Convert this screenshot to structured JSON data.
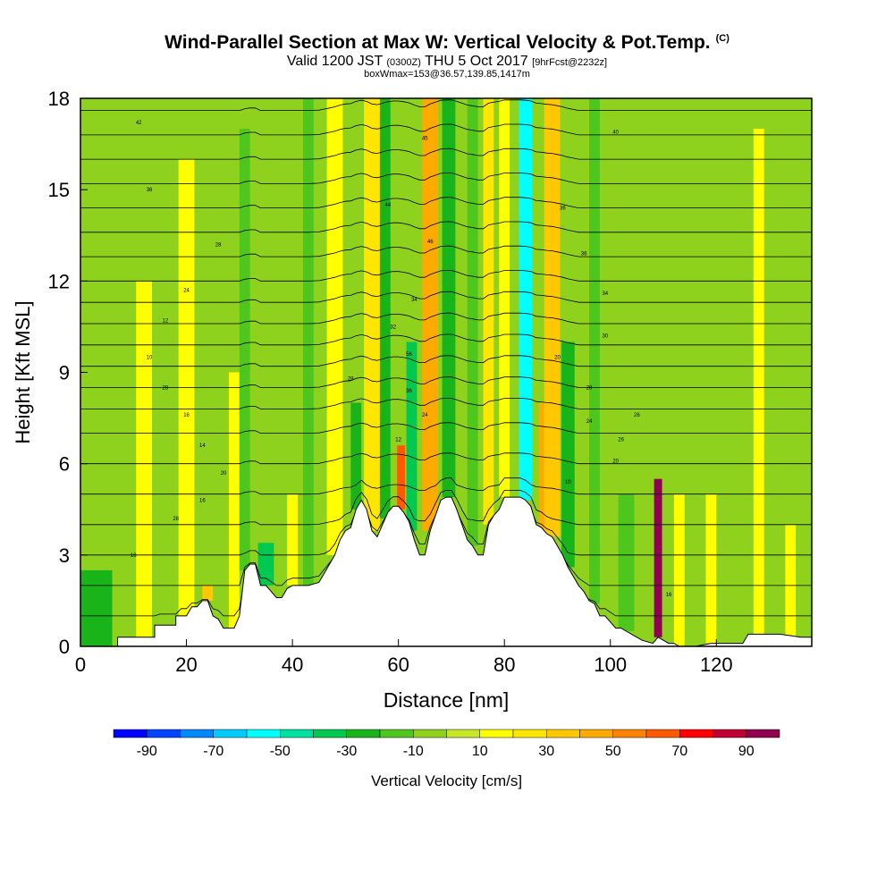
{
  "chart_data": {
    "type": "heatmap",
    "title": "Wind-Parallel Section at Max W: Vertical Velocity & Pot.Temp.",
    "title_mark": "(C)",
    "subtitle_parts": [
      "Valid 1200 JST",
      "(0300Z)",
      "THU 5 Oct 2017",
      "[9hrFcst@2232z]"
    ],
    "subsubtitle": "boxWmax=153@36.57,139.85,1417m",
    "xlabel": "Distance [nm]",
    "ylabel": "Height [Kft MSL]",
    "xlim": [
      0,
      138
    ],
    "ylim": [
      0,
      18
    ],
    "x_ticks": [
      "0",
      "20",
      "40",
      "60",
      "80",
      "100",
      "120"
    ],
    "x_tick_values": [
      0,
      20,
      40,
      60,
      80,
      100,
      120
    ],
    "y_ticks": [
      "0",
      "3",
      "6",
      "9",
      "12",
      "15",
      "18"
    ],
    "y_tick_values": [
      0,
      3,
      6,
      9,
      12,
      15,
      18
    ],
    "colorbar": {
      "label": "Vertical Velocity [cm/s]",
      "tick_labels": [
        "-90",
        "-70",
        "-50",
        "-30",
        "-10",
        "10",
        "30",
        "50",
        "70",
        "90"
      ],
      "tick_values": [
        -90,
        -70,
        -50,
        -30,
        -10,
        10,
        30,
        50,
        70,
        90
      ],
      "bounds": [
        -100,
        -90,
        -80,
        -70,
        -60,
        -50,
        -40,
        -30,
        -20,
        -10,
        0,
        10,
        20,
        30,
        40,
        50,
        60,
        70,
        80,
        90,
        100
      ],
      "colors": [
        "#0000ff",
        "#0044ff",
        "#0088ff",
        "#00ccff",
        "#00ffff",
        "#00e0a0",
        "#00c850",
        "#19b419",
        "#4ec61e",
        "#8ed21e",
        "#c6e628",
        "#ffff00",
        "#ffe600",
        "#ffc800",
        "#ffaa00",
        "#ff8200",
        "#ff5a00",
        "#ff0000",
        "#c00030",
        "#900050",
        "#600070"
      ]
    },
    "terrain_profile": {
      "x": [
        0,
        7,
        7,
        14,
        14,
        18,
        18,
        20,
        21,
        22,
        23,
        24,
        25,
        26,
        27,
        29,
        30,
        31,
        32,
        33,
        34,
        35,
        36,
        37,
        38,
        39,
        40,
        41,
        43,
        45,
        46,
        47,
        48,
        49,
        50,
        51,
        52,
        53,
        54,
        55,
        56,
        57,
        58,
        59,
        60,
        61,
        62,
        63,
        64,
        65,
        66,
        67,
        68,
        69,
        70,
        71,
        72,
        73,
        74,
        75,
        76,
        77,
        78,
        79,
        80,
        81,
        82,
        83,
        84,
        85,
        86,
        87,
        88,
        89,
        90,
        91,
        92,
        93,
        94,
        95,
        96,
        97,
        98,
        99,
        100,
        101,
        102,
        103,
        104,
        105,
        106,
        108,
        109,
        110,
        111,
        112,
        113,
        114,
        116,
        119,
        122,
        125,
        126,
        128,
        132,
        136,
        138
      ],
      "z": [
        0,
        0,
        0.3,
        0.3,
        0.7,
        0.7,
        1.0,
        1.0,
        1.3,
        1.3,
        1.5,
        1.5,
        1.0,
        0.9,
        0.6,
        0.6,
        1.0,
        2.5,
        2.7,
        2.7,
        2.0,
        2.0,
        1.8,
        1.6,
        1.6,
        1.9,
        2.0,
        2.0,
        2.0,
        2.1,
        2.4,
        2.7,
        3.0,
        3.5,
        3.8,
        3.9,
        4.5,
        4.8,
        4.5,
        3.8,
        3.6,
        4.0,
        4.4,
        4.6,
        4.6,
        4.4,
        4.1,
        3.5,
        3.0,
        3.0,
        3.8,
        4.3,
        4.8,
        4.9,
        4.9,
        4.5,
        4.0,
        3.5,
        3.3,
        3.0,
        3.0,
        4.0,
        4.3,
        4.5,
        4.9,
        4.9,
        4.9,
        4.9,
        4.8,
        4.6,
        4.0,
        3.9,
        3.7,
        3.6,
        3.3,
        3.0,
        2.6,
        2.3,
        2.0,
        1.8,
        1.5,
        1.4,
        1.0,
        1.0,
        0.8,
        0.6,
        0.6,
        0.5,
        0.4,
        0.3,
        0.2,
        0.1,
        0.3,
        0.2,
        0.1,
        0.1,
        0,
        0,
        0,
        0.1,
        0.1,
        0.1,
        0.4,
        0.4,
        0.4,
        0.3,
        0.3
      ]
    },
    "w_columns": [
      {
        "x": 3,
        "width": 6,
        "ztop": 2.5,
        "value": -25
      },
      {
        "x": 12,
        "width": 3,
        "ztop": 12.0,
        "value": 10
      },
      {
        "x": 20,
        "width": 3,
        "ztop": 16.0,
        "value": 15
      },
      {
        "x": 24,
        "width": 2,
        "ztop": 2.0,
        "value": 35
      },
      {
        "x": 29,
        "width": 2,
        "ztop": 9.0,
        "value": 15
      },
      {
        "x": 31,
        "width": 2,
        "ztop": 17.0,
        "value": -12
      },
      {
        "x": 35,
        "width": 3,
        "ztop": 3.4,
        "value": -35
      },
      {
        "x": 40,
        "width": 2,
        "ztop": 5.0,
        "value": 15
      },
      {
        "x": 43,
        "width": 2,
        "ztop": 18.0,
        "value": -12
      },
      {
        "x": 48,
        "width": 3,
        "ztop": 18.0,
        "value": 15
      },
      {
        "x": 52,
        "width": 2,
        "ztop": 8.0,
        "value": -25
      },
      {
        "x": 55,
        "width": 3,
        "ztop": 18.0,
        "value": 25
      },
      {
        "x": 57.5,
        "width": 2,
        "ztop": 18.0,
        "value": -25
      },
      {
        "x": 60.5,
        "width": 1.5,
        "ztop": 6.6,
        "value": 65
      },
      {
        "x": 62.5,
        "width": 2,
        "ztop": 10.0,
        "value": -35
      },
      {
        "x": 66,
        "width": 3,
        "ztop": 18.0,
        "value": 45
      },
      {
        "x": 69.5,
        "width": 2.5,
        "ztop": 18.0,
        "value": -25
      },
      {
        "x": 74,
        "width": 2,
        "ztop": 18.0,
        "value": -18
      },
      {
        "x": 77,
        "width": 2,
        "ztop": 18.0,
        "value": 25
      },
      {
        "x": 80,
        "width": 2,
        "ztop": 18.0,
        "value": 15
      },
      {
        "x": 84,
        "width": 2.5,
        "ztop": 18.0,
        "value": -55
      },
      {
        "x": 87.5,
        "width": 2,
        "ztop": 8.0,
        "value": 45
      },
      {
        "x": 89,
        "width": 3,
        "ztop": 18.0,
        "value": 35
      },
      {
        "x": 92,
        "width": 2.5,
        "ztop": 10.0,
        "value": -25
      },
      {
        "x": 97,
        "width": 2,
        "ztop": 18.0,
        "value": -15
      },
      {
        "x": 103,
        "width": 3,
        "ztop": 5.0,
        "value": -15
      },
      {
        "x": 109,
        "width": 1.5,
        "ztop": 5.5,
        "value": 95
      },
      {
        "x": 113,
        "width": 2,
        "ztop": 5.0,
        "value": 15
      },
      {
        "x": 119,
        "width": 2,
        "ztop": 5.0,
        "value": 15
      },
      {
        "x": 128,
        "width": 2,
        "ztop": 17.0,
        "value": 15
      },
      {
        "x": 134,
        "width": 2,
        "ztop": 4.0,
        "value": 15
      }
    ],
    "theta_contour_labels": [
      {
        "text": "42",
        "x": 11,
        "z": 17.2
      },
      {
        "text": "36",
        "x": 13,
        "z": 15.0
      },
      {
        "text": "28",
        "x": 26,
        "z": 13.2
      },
      {
        "text": "24",
        "x": 20,
        "z": 11.7
      },
      {
        "text": "12",
        "x": 16,
        "z": 10.7
      },
      {
        "text": "10",
        "x": 13,
        "z": 9.5
      },
      {
        "text": "28",
        "x": 16,
        "z": 8.5
      },
      {
        "text": "16",
        "x": 20,
        "z": 7.6
      },
      {
        "text": "14",
        "x": 23,
        "z": 6.6
      },
      {
        "text": "20",
        "x": 27,
        "z": 5.7
      },
      {
        "text": "16",
        "x": 23,
        "z": 4.8
      },
      {
        "text": "28",
        "x": 18,
        "z": 4.2
      },
      {
        "text": "18",
        "x": 10,
        "z": 3.0
      },
      {
        "text": "45",
        "x": 65,
        "z": 16.7
      },
      {
        "text": "44",
        "x": 58,
        "z": 14.5
      },
      {
        "text": "46",
        "x": 66,
        "z": 13.3
      },
      {
        "text": "34",
        "x": 63,
        "z": 11.4
      },
      {
        "text": "32",
        "x": 59,
        "z": 10.5
      },
      {
        "text": "56",
        "x": 62,
        "z": 9.6
      },
      {
        "text": "28",
        "x": 51,
        "z": 8.8
      },
      {
        "text": "36",
        "x": 62,
        "z": 8.4
      },
      {
        "text": "24",
        "x": 65,
        "z": 7.6
      },
      {
        "text": "12",
        "x": 60,
        "z": 6.8
      },
      {
        "text": "40",
        "x": 101,
        "z": 16.9
      },
      {
        "text": "36",
        "x": 91,
        "z": 14.4
      },
      {
        "text": "36",
        "x": 95,
        "z": 12.9
      },
      {
        "text": "34",
        "x": 99,
        "z": 11.6
      },
      {
        "text": "30",
        "x": 99,
        "z": 10.2
      },
      {
        "text": "20",
        "x": 90,
        "z": 9.5
      },
      {
        "text": "28",
        "x": 96,
        "z": 8.5
      },
      {
        "text": "26",
        "x": 105,
        "z": 7.6
      },
      {
        "text": "24",
        "x": 96,
        "z": 7.4
      },
      {
        "text": "26",
        "x": 102,
        "z": 6.8
      },
      {
        "text": "20",
        "x": 101,
        "z": 6.1
      },
      {
        "text": "10",
        "x": 92,
        "z": 5.4
      },
      {
        "text": "16",
        "x": 111,
        "z": 1.7
      }
    ]
  }
}
